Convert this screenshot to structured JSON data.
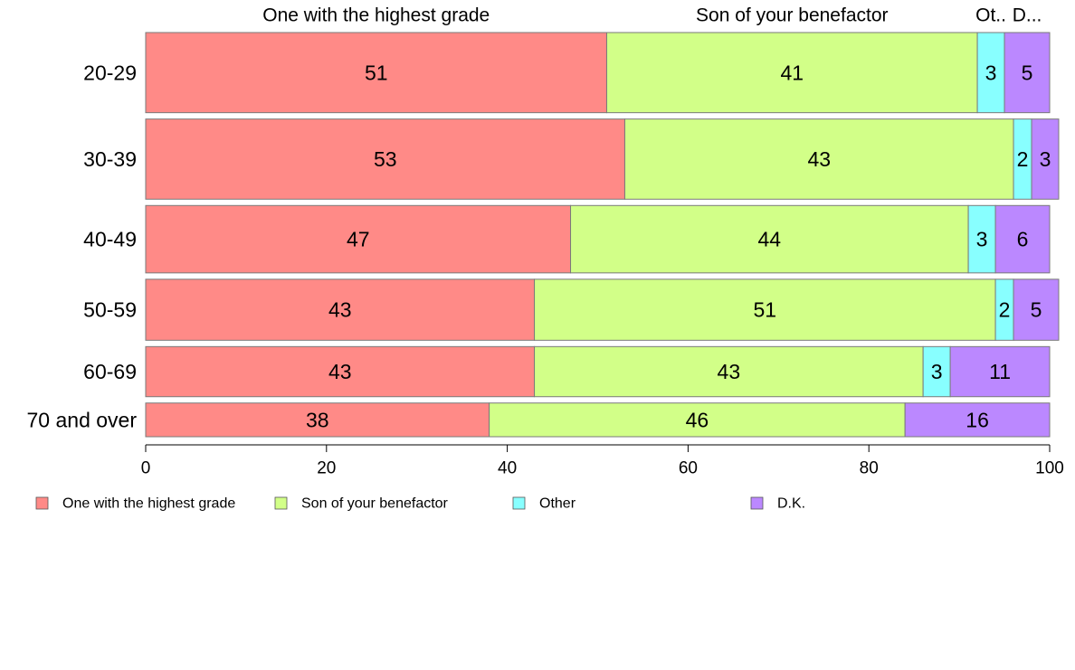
{
  "chart_data": {
    "type": "bar",
    "orientation": "horizontal",
    "stacked": true,
    "categories": [
      "20-29",
      "30-39",
      "40-49",
      "50-59",
      "60-69",
      "70 and over"
    ],
    "relative_row_heights": [
      88,
      88,
      74,
      67,
      55,
      37
    ],
    "series": [
      {
        "name": "One with the highest grade",
        "color": "#ff8a87",
        "values": [
          51,
          53,
          47,
          43,
          43,
          38
        ],
        "top_label": "One with the highest grade"
      },
      {
        "name": "Son of your benefactor",
        "color": "#d2ff88",
        "values": [
          41,
          43,
          44,
          51,
          43,
          46
        ],
        "top_label": "Son of your benefactor"
      },
      {
        "name": "Other",
        "color": "#88ffff",
        "values": [
          3,
          2,
          3,
          2,
          3,
          0
        ],
        "top_label": "Ot.."
      },
      {
        "name": "D.K.",
        "color": "#bb88ff",
        "values": [
          5,
          3,
          6,
          5,
          11,
          16
        ],
        "top_label": "D..."
      }
    ],
    "xlim": [
      0,
      100
    ],
    "xticks": [
      0,
      20,
      40,
      60,
      80,
      100
    ],
    "grid": false,
    "legend_placement": "bottom-left"
  }
}
